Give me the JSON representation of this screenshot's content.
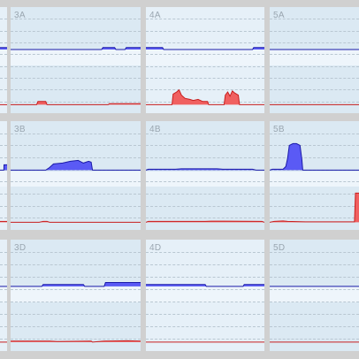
{
  "colors": {
    "background": "#d0d0d0",
    "panel": "#dbe9f3",
    "panel_alt": "#e6f0f8",
    "band": "#eef5fb",
    "blue": "#5a5af5",
    "dark_blue": "#1a1aa8",
    "red": "#f06060",
    "dark_red": "#c81e1e"
  },
  "chart_data": [
    {
      "type": "area",
      "title": "3A",
      "row": 0,
      "col": 1,
      "blue": {
        "x": [
          0.0,
          0.7,
          0.71,
          0.8,
          0.81,
          0.88,
          0.89,
          1.0
        ],
        "y": [
          0,
          0,
          1,
          1,
          0,
          0,
          1,
          1
        ]
      },
      "red": {
        "x": [
          0.0,
          0.2,
          0.21,
          0.27,
          0.28,
          0.75,
          0.76,
          1.0
        ],
        "y": [
          0,
          0,
          3,
          3,
          0,
          0,
          1,
          1
        ]
      }
    },
    {
      "type": "area",
      "title": "4A",
      "row": 0,
      "col": 2,
      "blue": {
        "x": [
          0.0,
          0.03,
          0.04,
          0.14,
          0.15,
          0.9,
          0.91,
          1.0
        ],
        "y": [
          1,
          1,
          1,
          1,
          0,
          0,
          1,
          1
        ]
      },
      "red": {
        "x": [
          0.0,
          0.22,
          0.23,
          0.26,
          0.28,
          0.3,
          0.33,
          0.37,
          0.4,
          0.44,
          0.48,
          0.52,
          0.53,
          0.66,
          0.67,
          0.69,
          0.71,
          0.73,
          0.75,
          0.78,
          0.79,
          0.8,
          1.0
        ],
        "y": [
          0,
          0,
          10,
          12,
          14,
          9,
          6,
          5,
          4,
          5,
          3,
          3,
          0,
          0,
          9,
          12,
          8,
          13,
          11,
          9,
          0,
          0,
          0
        ]
      }
    },
    {
      "type": "area",
      "title": "5A",
      "row": 0,
      "col": 3,
      "blue": {
        "x": [
          0,
          1
        ],
        "y": [
          0,
          0
        ]
      },
      "red": {
        "x": [
          0,
          1
        ],
        "y": [
          0,
          0
        ]
      }
    },
    {
      "type": "area",
      "title": "3B",
      "row": 1,
      "col": 1,
      "blue": {
        "x": [
          0.0,
          0.27,
          0.3,
          0.33,
          0.4,
          0.46,
          0.52,
          0.56,
          0.6,
          0.62,
          0.63,
          1.0
        ],
        "y": [
          0,
          0,
          3,
          7,
          8,
          10,
          11,
          8,
          10,
          9,
          0,
          0
        ]
      },
      "red": {
        "x": [
          0.0,
          0.22,
          0.25,
          0.28,
          0.3,
          1.0
        ],
        "y": [
          0,
          0,
          1,
          1,
          0,
          0
        ]
      }
    },
    {
      "type": "area",
      "title": "4B",
      "row": 1,
      "col": 2,
      "blue": {
        "x": [
          0.0,
          0.02,
          0.25,
          0.3,
          0.6,
          0.65,
          0.9,
          0.93,
          1.0
        ],
        "y": [
          0,
          1,
          1,
          1.5,
          1.5,
          1,
          1,
          0,
          0
        ]
      },
      "red": {
        "x": [
          0.0,
          0.02,
          0.5,
          0.55,
          0.98,
          1.0
        ],
        "y": [
          0,
          1,
          1,
          1.3,
          1,
          0
        ]
      }
    },
    {
      "type": "area",
      "title": "5B",
      "row": 1,
      "col": 3,
      "blue": {
        "x": [
          0.0,
          0.03,
          0.15,
          0.18,
          0.2,
          0.22,
          0.26,
          0.3,
          0.34,
          0.36,
          0.37,
          1.0
        ],
        "y": [
          0,
          1,
          1,
          4,
          13,
          28,
          30,
          30,
          28,
          12,
          0,
          0
        ]
      },
      "red": {
        "x": [
          0.0,
          0.05,
          0.15,
          0.2,
          0.4,
          0.7,
          0.95,
          0.96,
          1.0
        ],
        "y": [
          0,
          1,
          1.5,
          1,
          0.5,
          0.5,
          0.5,
          33,
          33
        ]
      }
    },
    {
      "type": "area",
      "title": "3D",
      "row": 2,
      "col": 1,
      "blue": {
        "x": [
          0.0,
          0.24,
          0.25,
          0.56,
          0.57,
          0.72,
          0.73,
          1.0
        ],
        "y": [
          0,
          0,
          1,
          1,
          0,
          0,
          2,
          2
        ]
      },
      "red": {
        "x": [
          0.0,
          0.02,
          0.3,
          0.36,
          0.62,
          0.63,
          0.72,
          0.9,
          1.0
        ],
        "y": [
          1,
          1,
          1,
          0.5,
          1,
          0,
          1,
          1.3,
          1
        ]
      }
    },
    {
      "type": "area",
      "title": "4D",
      "row": 2,
      "col": 2,
      "blue": {
        "x": [
          0.0,
          0.5,
          0.51,
          0.82,
          0.83,
          1.0
        ],
        "y": [
          1,
          1,
          0,
          0,
          1,
          1
        ]
      },
      "red": {
        "x": [
          0,
          1
        ],
        "y": [
          0,
          0
        ]
      }
    },
    {
      "type": "area",
      "title": "5D",
      "row": 2,
      "col": 3,
      "blue": {
        "x": [
          0,
          1
        ],
        "y": [
          0,
          0
        ]
      },
      "red": {
        "x": [
          0,
          1
        ],
        "y": [
          0,
          0
        ]
      }
    },
    {
      "type": "area",
      "title": "",
      "row": 0,
      "col": 0,
      "blue": {
        "x": [
          0.0,
          0.4,
          1.0
        ],
        "y": [
          1,
          1,
          1
        ]
      },
      "red": {
        "x": [
          0,
          1
        ],
        "y": [
          0,
          0
        ]
      }
    },
    {
      "type": "area",
      "title": "",
      "row": 1,
      "col": 0,
      "blue": {
        "x": [
          0.0,
          0.55,
          0.56,
          1.0
        ],
        "y": [
          0,
          0,
          6,
          6
        ]
      },
      "red": {
        "x": [
          0.0,
          0.45,
          1.0
        ],
        "y": [
          1,
          1,
          1
        ]
      }
    },
    {
      "type": "area",
      "title": "",
      "row": 2,
      "col": 0,
      "blue": {
        "x": [
          0,
          1
        ],
        "y": [
          0,
          0
        ]
      },
      "red": {
        "x": [
          0,
          1
        ],
        "y": [
          0,
          0
        ]
      }
    }
  ]
}
